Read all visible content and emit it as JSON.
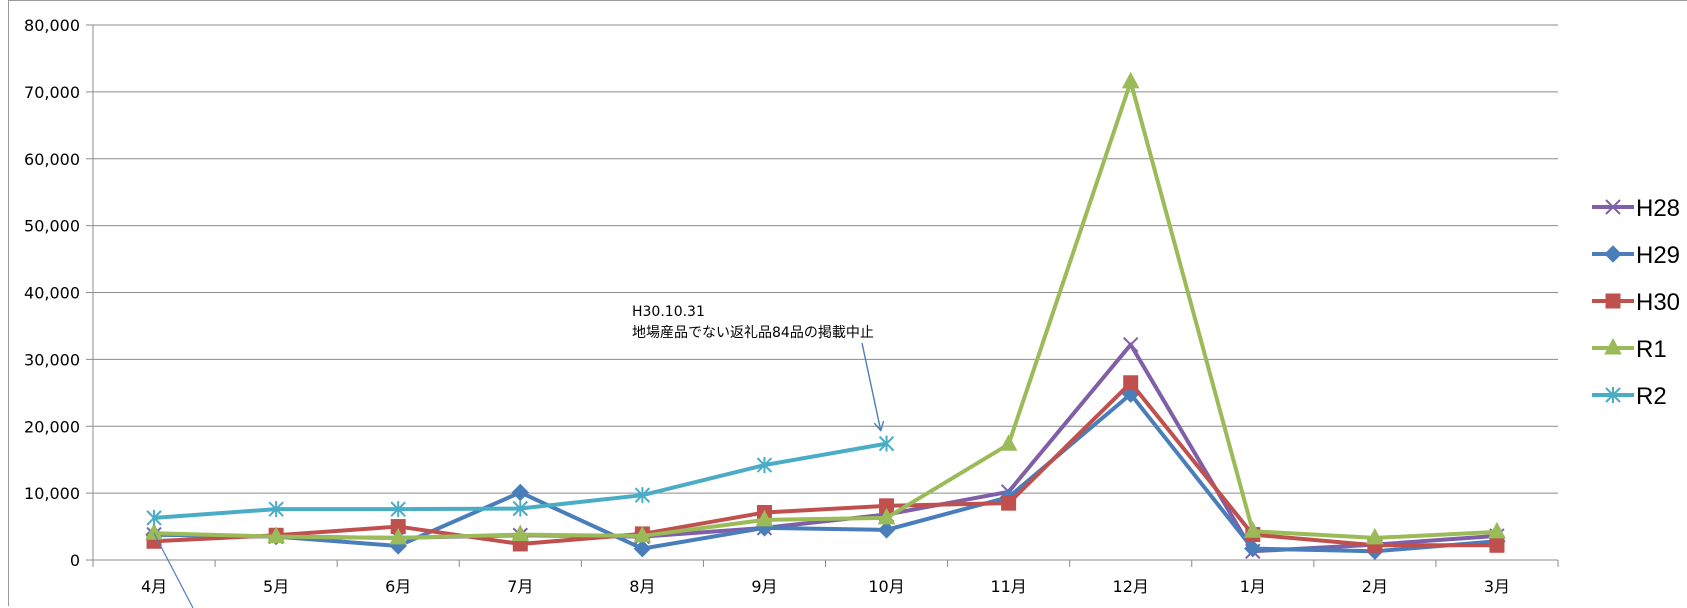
{
  "chart_data": {
    "type": "line",
    "categories": [
      "4月",
      "5月",
      "6月",
      "7月",
      "8月",
      "9月",
      "10月",
      "11月",
      "12月",
      "1月",
      "2月",
      "3月"
    ],
    "ylim": [
      0,
      80000
    ],
    "yticks": [
      0,
      10000,
      20000,
      30000,
      40000,
      50000,
      60000,
      70000,
      80000
    ],
    "ytick_labels": [
      "0",
      "10,000",
      "20,000",
      "30,000",
      "40,000",
      "50,000",
      "60,000",
      "70,000",
      "80,000"
    ],
    "grid": true,
    "legend_position": "right",
    "series": [
      {
        "name": "H28",
        "color": "#7f5fa8",
        "marker": "x",
        "values": [
          3800,
          3500,
          3300,
          3700,
          3500,
          4800,
          6800,
          10200,
          32200,
          1300,
          2300,
          3600
        ]
      },
      {
        "name": "H29",
        "color": "#4a7ebb",
        "marker": "diamond",
        "values": [
          3800,
          3500,
          2100,
          10100,
          1700,
          4800,
          4500,
          9400,
          24800,
          1700,
          1300,
          2800
        ]
      },
      {
        "name": "H30",
        "color": "#c0504d",
        "marker": "square",
        "values": [
          2800,
          3700,
          5000,
          2400,
          3900,
          7100,
          8100,
          8500,
          26500,
          3800,
          2200,
          2200
        ]
      },
      {
        "name": "R1",
        "color": "#9bbb59",
        "marker": "triangle",
        "values": [
          4000,
          3500,
          3300,
          3800,
          3600,
          6000,
          6300,
          17300,
          71500,
          4300,
          3300,
          4200
        ]
      },
      {
        "name": "R2",
        "color": "#4bacc6",
        "marker": "star",
        "values": [
          6300,
          7600,
          7600,
          7700,
          9700,
          14200,
          17400,
          null,
          null,
          null,
          null,
          null
        ]
      }
    ],
    "annotations": [
      {
        "lines": [
          "H30.10.31",
          "地場産品でない返礼品84品の掲載中止"
        ],
        "points_to": {
          "category": "10月",
          "value": 19500
        }
      }
    ]
  }
}
